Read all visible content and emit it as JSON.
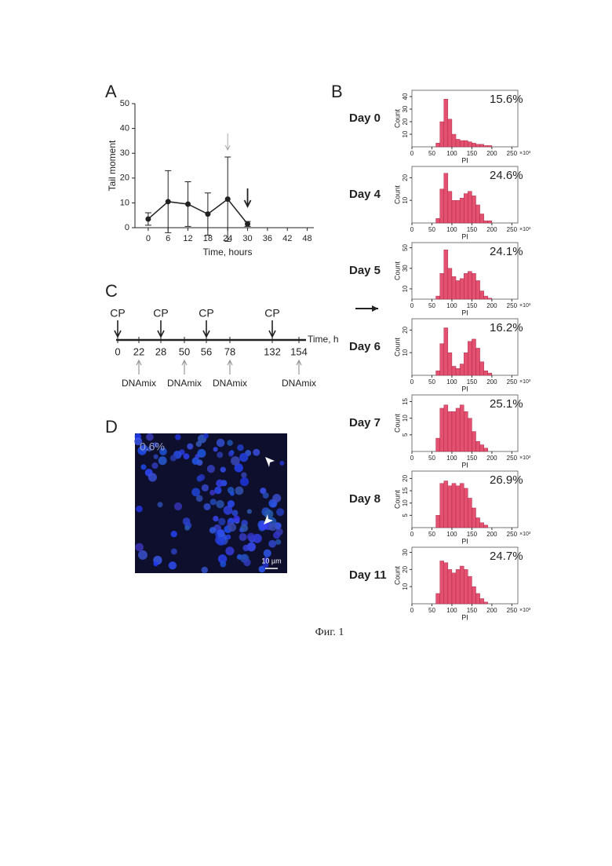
{
  "panels": {
    "a": "A",
    "b": "B",
    "c": "C",
    "d": "D"
  },
  "chart_data": [
    {
      "type": "line",
      "xlabel": "Time, hours",
      "ylabel": "Tail moment",
      "x": [
        0,
        6,
        12,
        18,
        24,
        30
      ],
      "values": [
        3.5,
        10.5,
        9.5,
        5.5,
        11.5,
        1.5
      ],
      "errors": [
        2.5,
        12.5,
        9,
        8.5,
        17,
        1
      ],
      "color": "#222222",
      "xlim": [
        -4,
        50
      ],
      "xticks": [
        0,
        6,
        12,
        18,
        24,
        30,
        36,
        42,
        48
      ],
      "ylim": [
        0,
        50
      ],
      "yticks": [
        0,
        10,
        20,
        30,
        40,
        50
      ]
    },
    {
      "type": "histogram",
      "title": "Day 0",
      "annotation": "15.6%",
      "xlabel": "PI",
      "ylabel": "Count",
      "x_unit": "×10³",
      "color": "#e4506f",
      "bins": [
        60,
        70,
        80,
        90,
        100,
        110,
        120,
        130,
        140,
        150,
        160,
        170,
        180,
        190,
        200
      ],
      "values": [
        3,
        20,
        38,
        22,
        10,
        6,
        5,
        5,
        4,
        3,
        2,
        2,
        1,
        1
      ],
      "xlim": [
        0,
        265
      ],
      "xticks": [
        0,
        50,
        100,
        150,
        200,
        250
      ],
      "ylim": [
        0,
        45
      ],
      "yticks": [
        10,
        20,
        30,
        40
      ]
    },
    {
      "type": "histogram",
      "title": "Day 4",
      "annotation": "24.6%",
      "xlabel": "PI",
      "ylabel": "Count",
      "x_unit": "×10³",
      "color": "#e4506f",
      "bins": [
        60,
        70,
        80,
        90,
        100,
        110,
        120,
        130,
        140,
        150,
        160,
        170,
        180,
        190,
        200
      ],
      "values": [
        2,
        15,
        22,
        14,
        10,
        10,
        11,
        13,
        14,
        12,
        8,
        4,
        1,
        1
      ],
      "xlim": [
        0,
        265
      ],
      "xticks": [
        0,
        50,
        100,
        150,
        200,
        250
      ],
      "ylim": [
        0,
        25
      ],
      "yticks": [
        10,
        20
      ]
    },
    {
      "type": "histogram",
      "title": "Day 5",
      "annotation": "24.1%",
      "xlabel": "PI",
      "ylabel": "Count",
      "x_unit": "×10³",
      "color": "#e4506f",
      "bins": [
        60,
        70,
        80,
        90,
        100,
        110,
        120,
        130,
        140,
        150,
        160,
        170,
        180,
        190,
        200
      ],
      "values": [
        3,
        25,
        48,
        30,
        22,
        18,
        20,
        25,
        27,
        25,
        18,
        8,
        3,
        1
      ],
      "xlim": [
        0,
        265
      ],
      "xticks": [
        0,
        50,
        100,
        150,
        200,
        250
      ],
      "ylim": [
        0,
        55
      ],
      "yticks": [
        10,
        30,
        50
      ]
    },
    {
      "type": "histogram",
      "title": "Day 6",
      "annotation": "16.2%",
      "xlabel": "PI",
      "ylabel": "Count",
      "x_unit": "×10³",
      "color": "#e4506f",
      "bins": [
        60,
        70,
        80,
        90,
        100,
        110,
        120,
        130,
        140,
        150,
        160,
        170,
        180,
        190,
        200
      ],
      "values": [
        2,
        14,
        21,
        10,
        4,
        3,
        5,
        10,
        15,
        16,
        12,
        6,
        2,
        1
      ],
      "xlim": [
        0,
        265
      ],
      "xticks": [
        0,
        50,
        100,
        150,
        200,
        250
      ],
      "ylim": [
        0,
        25
      ],
      "yticks": [
        10,
        20
      ]
    },
    {
      "type": "histogram",
      "title": "Day 7",
      "annotation": "25.1%",
      "xlabel": "PI",
      "ylabel": "Count",
      "x_unit": "×10³",
      "color": "#e4506f",
      "bins": [
        60,
        70,
        80,
        90,
        100,
        110,
        120,
        130,
        140,
        150,
        160,
        170,
        180,
        190,
        200
      ],
      "values": [
        4,
        13,
        14,
        12,
        12,
        13,
        14,
        12,
        10,
        6,
        3,
        2,
        1,
        0
      ],
      "xlim": [
        0,
        265
      ],
      "xticks": [
        0,
        50,
        100,
        150,
        200,
        250
      ],
      "ylim": [
        0,
        17
      ],
      "yticks": [
        5,
        10,
        15
      ]
    },
    {
      "type": "histogram",
      "title": "Day 8",
      "annotation": "26.9%",
      "xlabel": "PI",
      "ylabel": "Count",
      "x_unit": "×10³",
      "color": "#e4506f",
      "bins": [
        60,
        70,
        80,
        90,
        100,
        110,
        120,
        130,
        140,
        150,
        160,
        170,
        180,
        190,
        200
      ],
      "values": [
        5,
        18,
        19,
        17,
        18,
        17,
        18,
        16,
        12,
        8,
        4,
        2,
        1,
        0
      ],
      "xlim": [
        0,
        265
      ],
      "xticks": [
        0,
        50,
        100,
        150,
        200,
        250
      ],
      "ylim": [
        0,
        23
      ],
      "yticks": [
        5,
        10,
        15,
        20
      ]
    },
    {
      "type": "histogram",
      "title": "Day 11",
      "annotation": "24.7%",
      "xlabel": "PI",
      "ylabel": "Count",
      "x_unit": "×10³",
      "color": "#e4506f",
      "bins": [
        60,
        70,
        80,
        90,
        100,
        110,
        120,
        130,
        140,
        150,
        160,
        170,
        180,
        190,
        200
      ],
      "values": [
        6,
        25,
        24,
        20,
        18,
        20,
        22,
        20,
        16,
        10,
        6,
        3,
        1,
        0
      ],
      "xlim": [
        0,
        265
      ],
      "xticks": [
        0,
        50,
        100,
        150,
        200,
        250
      ],
      "ylim": [
        0,
        33
      ],
      "yticks": [
        10,
        20,
        30
      ]
    }
  ],
  "timeline": {
    "axis_label": "Time, h",
    "events": [
      {
        "time": "0",
        "label": "CP"
      },
      {
        "time": "22",
        "label": "DNAmix"
      },
      {
        "time": "28",
        "label": "CP"
      },
      {
        "time": "50",
        "label": "DNAmix"
      },
      {
        "time": "56",
        "label": "CP"
      },
      {
        "time": "78",
        "label": "DNAmix"
      },
      {
        "time": "132",
        "label": "CP"
      },
      {
        "time": "154",
        "label": "DNAmix"
      }
    ]
  },
  "micrograph": {
    "fraction": "0.6%",
    "scale_bar": "10 µm"
  },
  "caption": "Фиг. 1"
}
